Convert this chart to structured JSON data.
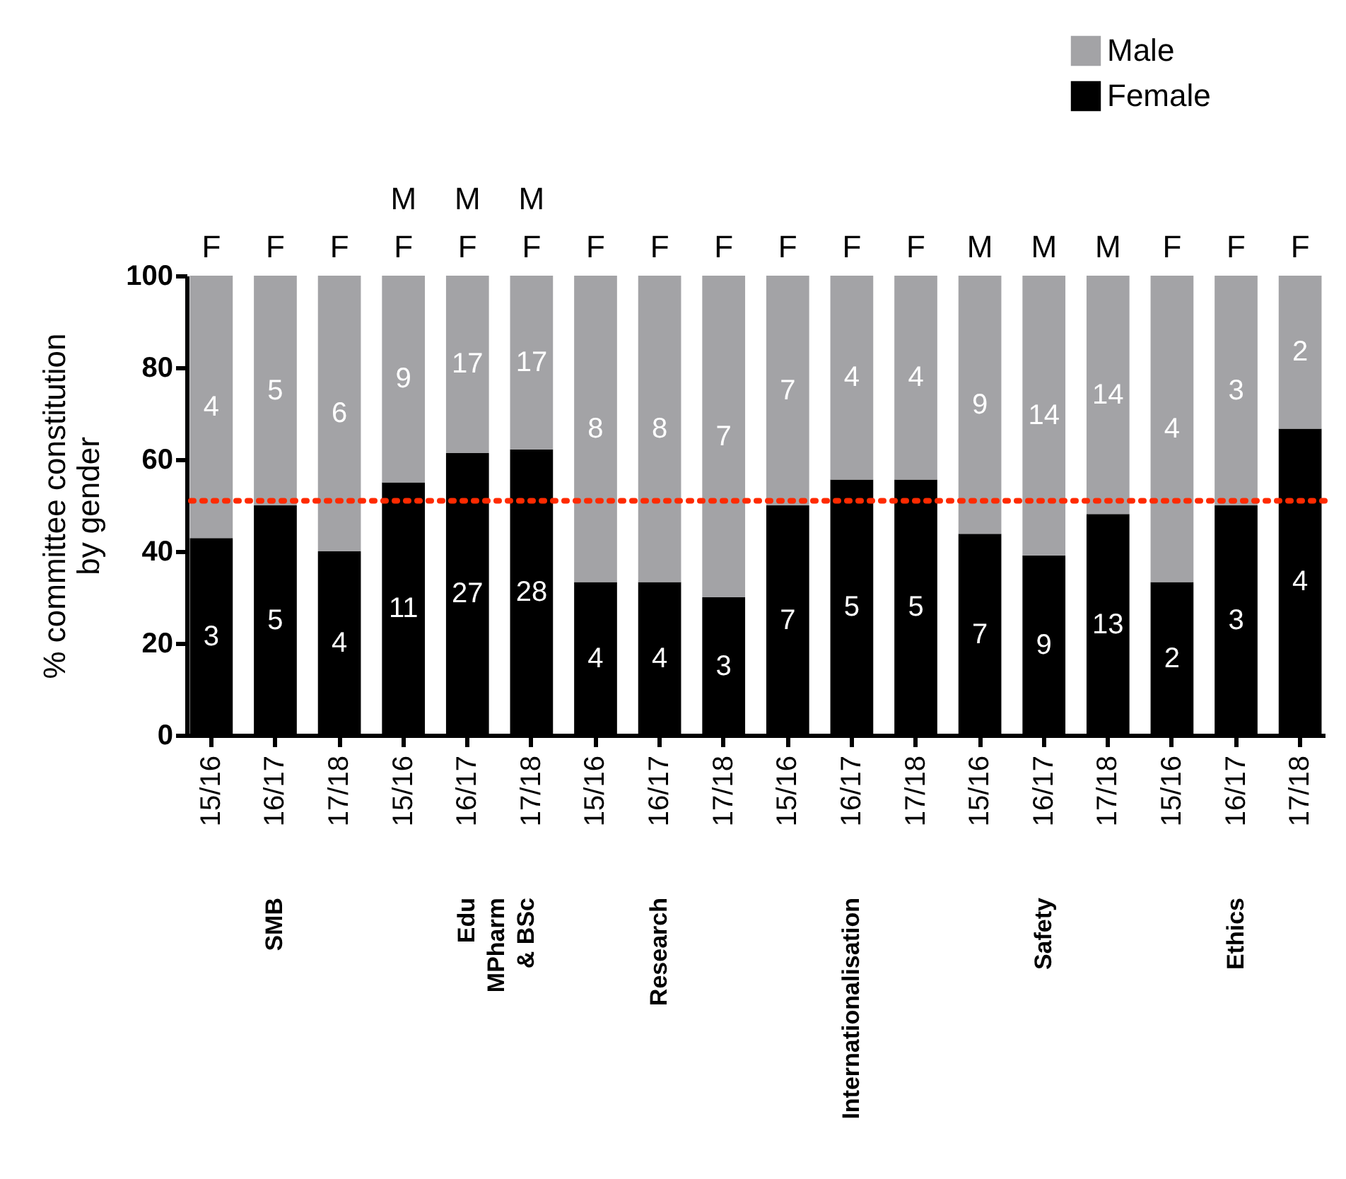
{
  "chart_data": {
    "type": "bar",
    "stacked": true,
    "categories": [
      "15/16",
      "16/17",
      "17/18",
      "15/16",
      "16/17",
      "17/18",
      "15/16",
      "16/17",
      "17/18",
      "15/16",
      "16/17",
      "17/18",
      "15/16",
      "16/17",
      "17/18",
      "15/16",
      "16/17",
      "17/18"
    ],
    "ylabel": "% committee constitution\nby gender",
    "series": [
      {
        "name": "Female",
        "color": "#000000",
        "values": [
          42.9,
          50,
          40,
          55,
          61.4,
          62.2,
          33.3,
          33.3,
          30,
          50,
          55.6,
          55.6,
          43.8,
          39.1,
          48.1,
          33.3,
          50,
          66.7
        ]
      },
      {
        "name": "Male",
        "color": "#a3a3a6",
        "values": [
          57.1,
          50,
          60,
          45,
          38.6,
          37.8,
          66.7,
          66.7,
          70,
          50,
          44.4,
          44.4,
          56.2,
          60.9,
          51.9,
          66.7,
          50,
          33.3
        ]
      }
    ],
    "annotations": [
      "F",
      "F",
      "F",
      "F",
      "F",
      "F",
      "F",
      "F",
      "F",
      "F",
      "F",
      "F",
      "M",
      "M",
      "M",
      "F",
      "F",
      "F",
      "M",
      "M",
      "M",
      "SMB",
      "Edu\nMPharm\n& BSc",
      "Research",
      "Internationalisation",
      "Safety",
      "Ethics",
      "3",
      "4",
      "5",
      "5",
      "4",
      "6",
      "11",
      "9",
      "27",
      "17",
      "28",
      "17",
      "4",
      "8",
      "4",
      "8",
      "3",
      "7",
      "7",
      "7",
      "5",
      "4",
      "5",
      "4",
      "7",
      "9",
      "9",
      "14",
      "13",
      "14",
      "2",
      "4",
      "3",
      "3",
      "4",
      "2"
    ],
    "ylim": [
      0,
      100
    ],
    "yticks": [
      0,
      20,
      40,
      60,
      80,
      100
    ],
    "ref_lines": [
      {
        "axis": "y",
        "value": 51,
        "color": "#ff2a00",
        "line_style": "dotted"
      }
    ],
    "legend": "top right",
    "grid": false
  }
}
